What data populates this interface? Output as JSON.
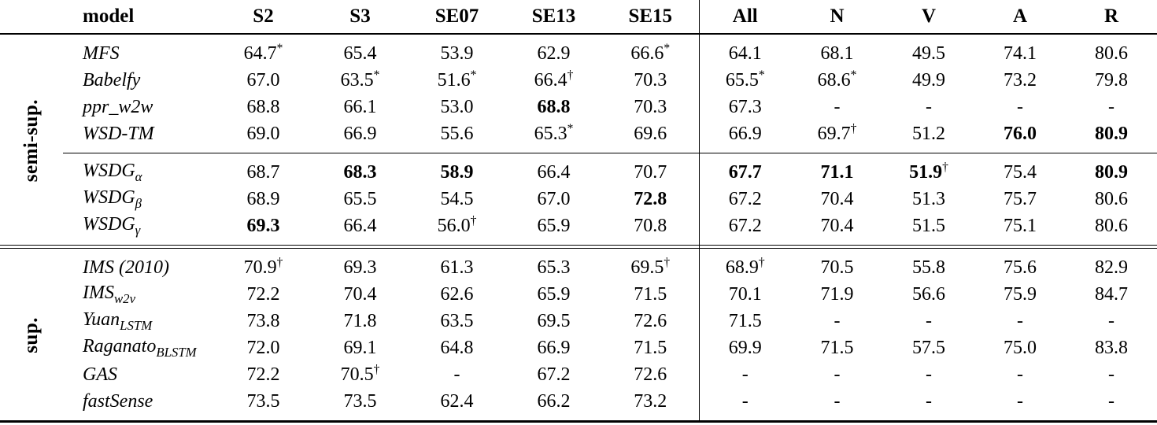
{
  "page": {
    "background": "#ffffff",
    "text_color": "#000000",
    "rule_color": "#000000"
  },
  "table": {
    "columns": [
      "model",
      "S2",
      "S3",
      "SE07",
      "SE13",
      "SE15",
      "All",
      "N",
      "V",
      "A",
      "R"
    ],
    "divider_before_column": "All",
    "groups": [
      {
        "label": "semi-sup.",
        "subgroups": [
          {
            "rows": [
              {
                "name": "MFS",
                "sub": "",
                "cells": [
                  {
                    "v": "64.7",
                    "s": "*"
                  },
                  {
                    "v": "65.4"
                  },
                  {
                    "v": "53.9"
                  },
                  {
                    "v": "62.9"
                  },
                  {
                    "v": "66.6",
                    "s": "*"
                  },
                  {
                    "v": "64.1"
                  },
                  {
                    "v": "68.1"
                  },
                  {
                    "v": "49.5"
                  },
                  {
                    "v": "74.1"
                  },
                  {
                    "v": "80.6"
                  }
                ]
              },
              {
                "name": "Babelfy",
                "sub": "",
                "cells": [
                  {
                    "v": "67.0"
                  },
                  {
                    "v": "63.5",
                    "s": "*"
                  },
                  {
                    "v": "51.6",
                    "s": "*"
                  },
                  {
                    "v": "66.4",
                    "s": "†"
                  },
                  {
                    "v": "70.3"
                  },
                  {
                    "v": "65.5",
                    "s": "*"
                  },
                  {
                    "v": "68.6",
                    "s": "*"
                  },
                  {
                    "v": "49.9"
                  },
                  {
                    "v": "73.2"
                  },
                  {
                    "v": "79.8"
                  }
                ]
              },
              {
                "name": "ppr_w2w",
                "sub": "",
                "cells": [
                  {
                    "v": "68.8"
                  },
                  {
                    "v": "66.1"
                  },
                  {
                    "v": "53.0"
                  },
                  {
                    "v": "68.8",
                    "b": 1
                  },
                  {
                    "v": "70.3"
                  },
                  {
                    "v": "67.3"
                  },
                  {
                    "v": "-"
                  },
                  {
                    "v": "-"
                  },
                  {
                    "v": "-"
                  },
                  {
                    "v": "-"
                  }
                ]
              },
              {
                "name": "WSD-TM",
                "sub": "",
                "cells": [
                  {
                    "v": "69.0"
                  },
                  {
                    "v": "66.9"
                  },
                  {
                    "v": "55.6"
                  },
                  {
                    "v": "65.3",
                    "s": "*"
                  },
                  {
                    "v": "69.6"
                  },
                  {
                    "v": "66.9"
                  },
                  {
                    "v": "69.7",
                    "s": "†"
                  },
                  {
                    "v": "51.2"
                  },
                  {
                    "v": "76.0",
                    "b": 1
                  },
                  {
                    "v": "80.9",
                    "b": 1
                  }
                ]
              }
            ]
          },
          {
            "rows": [
              {
                "name": "WSDG",
                "sub": "α",
                "cells": [
                  {
                    "v": "68.7"
                  },
                  {
                    "v": "68.3",
                    "b": 1
                  },
                  {
                    "v": "58.9",
                    "b": 1
                  },
                  {
                    "v": "66.4"
                  },
                  {
                    "v": "70.7"
                  },
                  {
                    "v": "67.7",
                    "b": 1
                  },
                  {
                    "v": "71.1",
                    "b": 1
                  },
                  {
                    "v": "51.9",
                    "b": 1,
                    "s": "†"
                  },
                  {
                    "v": "75.4"
                  },
                  {
                    "v": "80.9",
                    "b": 1
                  }
                ]
              },
              {
                "name": "WSDG",
                "sub": "β",
                "cells": [
                  {
                    "v": "68.9"
                  },
                  {
                    "v": "65.5"
                  },
                  {
                    "v": "54.5"
                  },
                  {
                    "v": "67.0"
                  },
                  {
                    "v": "72.8",
                    "b": 1
                  },
                  {
                    "v": "67.2"
                  },
                  {
                    "v": "70.4"
                  },
                  {
                    "v": "51.3"
                  },
                  {
                    "v": "75.7"
                  },
                  {
                    "v": "80.6"
                  }
                ]
              },
              {
                "name": "WSDG",
                "sub": "γ",
                "cells": [
                  {
                    "v": "69.3",
                    "b": 1
                  },
                  {
                    "v": "66.4"
                  },
                  {
                    "v": "56.0",
                    "s": "†"
                  },
                  {
                    "v": "65.9"
                  },
                  {
                    "v": "70.8"
                  },
                  {
                    "v": "67.2"
                  },
                  {
                    "v": "70.4"
                  },
                  {
                    "v": "51.5"
                  },
                  {
                    "v": "75.1"
                  },
                  {
                    "v": "80.6"
                  }
                ]
              }
            ]
          }
        ]
      },
      {
        "label": "sup.",
        "subgroups": [
          {
            "rows": [
              {
                "name": "IMS (2010)",
                "sub": "",
                "cells": [
                  {
                    "v": "70.9",
                    "s": "†"
                  },
                  {
                    "v": "69.3"
                  },
                  {
                    "v": "61.3"
                  },
                  {
                    "v": "65.3"
                  },
                  {
                    "v": "69.5",
                    "s": "†"
                  },
                  {
                    "v": "68.9",
                    "s": "†"
                  },
                  {
                    "v": "70.5"
                  },
                  {
                    "v": "55.8"
                  },
                  {
                    "v": "75.6"
                  },
                  {
                    "v": "82.9"
                  }
                ]
              },
              {
                "name": "IMS",
                "sub": "w2v",
                "cells": [
                  {
                    "v": "72.2"
                  },
                  {
                    "v": "70.4"
                  },
                  {
                    "v": "62.6"
                  },
                  {
                    "v": "65.9"
                  },
                  {
                    "v": "71.5"
                  },
                  {
                    "v": "70.1"
                  },
                  {
                    "v": "71.9"
                  },
                  {
                    "v": "56.6"
                  },
                  {
                    "v": "75.9"
                  },
                  {
                    "v": "84.7"
                  }
                ]
              },
              {
                "name": "Yuan",
                "sub": "LSTM",
                "cells": [
                  {
                    "v": "73.8"
                  },
                  {
                    "v": "71.8"
                  },
                  {
                    "v": "63.5"
                  },
                  {
                    "v": "69.5"
                  },
                  {
                    "v": "72.6"
                  },
                  {
                    "v": "71.5"
                  },
                  {
                    "v": "-"
                  },
                  {
                    "v": "-"
                  },
                  {
                    "v": "-"
                  },
                  {
                    "v": "-"
                  }
                ]
              },
              {
                "name": "Raganato",
                "sub": "BLSTM",
                "cells": [
                  {
                    "v": "72.0"
                  },
                  {
                    "v": "69.1"
                  },
                  {
                    "v": "64.8"
                  },
                  {
                    "v": "66.9"
                  },
                  {
                    "v": "71.5"
                  },
                  {
                    "v": "69.9"
                  },
                  {
                    "v": "71.5"
                  },
                  {
                    "v": "57.5"
                  },
                  {
                    "v": "75.0"
                  },
                  {
                    "v": "83.8"
                  }
                ]
              },
              {
                "name": "GAS",
                "sub": "",
                "cells": [
                  {
                    "v": "72.2"
                  },
                  {
                    "v": "70.5",
                    "s": "†"
                  },
                  {
                    "v": "-"
                  },
                  {
                    "v": "67.2"
                  },
                  {
                    "v": "72.6"
                  },
                  {
                    "v": "-"
                  },
                  {
                    "v": "-"
                  },
                  {
                    "v": "-"
                  },
                  {
                    "v": "-"
                  },
                  {
                    "v": "-"
                  }
                ]
              },
              {
                "name": "fastSense",
                "sub": "",
                "cells": [
                  {
                    "v": "73.5"
                  },
                  {
                    "v": "73.5"
                  },
                  {
                    "v": "62.4"
                  },
                  {
                    "v": "66.2"
                  },
                  {
                    "v": "73.2"
                  },
                  {
                    "v": "-"
                  },
                  {
                    "v": "-"
                  },
                  {
                    "v": "-"
                  },
                  {
                    "v": "-"
                  },
                  {
                    "v": "-"
                  }
                ]
              }
            ]
          }
        ]
      }
    ]
  }
}
